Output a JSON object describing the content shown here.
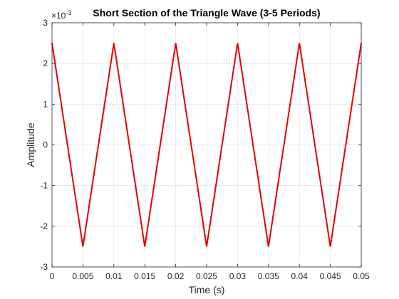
{
  "chart_data": {
    "type": "line",
    "title": "Short Section of the Triangle Wave (3-5 Periods)",
    "xlabel": "Time (s)",
    "ylabel": "Amplitude",
    "xlim": [
      0,
      0.05
    ],
    "ylim": [
      -0.003,
      0.003
    ],
    "x_ticks": [
      0,
      0.005,
      0.01,
      0.015,
      0.02,
      0.025,
      0.03,
      0.035,
      0.04,
      0.045,
      0.05
    ],
    "x_tick_labels": [
      "0",
      "0.005",
      "0.01",
      "0.015",
      "0.02",
      "0.025",
      "0.03",
      "0.035",
      "0.04",
      "0.045",
      "0.05"
    ],
    "y_ticks": [
      -0.003,
      -0.002,
      -0.001,
      0,
      0.001,
      0.002,
      0.003
    ],
    "y_tick_labels": [
      "-3",
      "-2",
      "-1",
      "0",
      "1",
      "2",
      "3"
    ],
    "y_multiplier": {
      "base": "×10",
      "exponent": "-3"
    },
    "grid": true,
    "series": [
      {
        "color": "#e60000",
        "x": [
          0,
          0.005,
          0.01,
          0.015,
          0.02,
          0.025,
          0.03,
          0.035,
          0.04,
          0.045,
          0.05
        ],
        "y": [
          0.0025,
          -0.0025,
          0.0025,
          -0.0025,
          0.0025,
          -0.0025,
          0.0025,
          -0.0025,
          0.0025,
          -0.0025,
          0.0025
        ]
      }
    ]
  }
}
